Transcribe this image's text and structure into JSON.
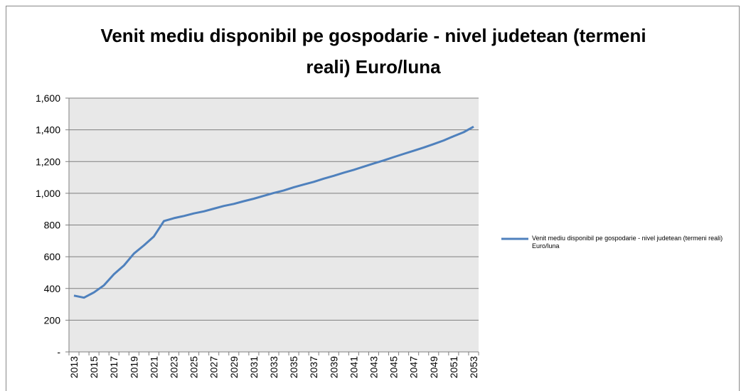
{
  "chart_data": {
    "type": "line",
    "title": "Venit mediu disponibil pe gospodarie - nivel judetean (termeni reali) Euro/luna",
    "categories": [
      "2013",
      null,
      "2015",
      null,
      "2017",
      null,
      "2019",
      null,
      "2021",
      null,
      "2023",
      null,
      "2025",
      null,
      "2027",
      null,
      "2029",
      null,
      "2031",
      null,
      "2033",
      null,
      "2035",
      null,
      "2037",
      null,
      "2039",
      null,
      "2041",
      null,
      "2043",
      null,
      "2045",
      null,
      "2047",
      null,
      "2049",
      null,
      "2051",
      null,
      "2053"
    ],
    "series": [
      {
        "name": "Venit mediu disponibil pe gospodarie - nivel judetean (termeni reali) Euro/luna",
        "color": "#4f81bd",
        "values": [
          355,
          342,
          375,
          420,
          490,
          545,
          620,
          672,
          728,
          825,
          843,
          857,
          873,
          886,
          903,
          920,
          933,
          950,
          966,
          984,
          1002,
          1018,
          1038,
          1055,
          1072,
          1092,
          1110,
          1130,
          1148,
          1168,
          1188,
          1207,
          1228,
          1248,
          1268,
          1288,
          1310,
          1333,
          1360,
          1385,
          1420
        ]
      }
    ],
    "ylim": [
      0,
      1600
    ],
    "yticks": [
      {
        "value": 0,
        "label": "-"
      },
      200,
      400,
      600,
      800,
      {
        "value": 1000,
        "label": "1,000"
      },
      {
        "value": 1200,
        "label": "1,200"
      },
      {
        "value": 1400,
        "label": "1,400"
      },
      {
        "value": 1600,
        "label": "1,600"
      }
    ],
    "grid": true,
    "legend": "right"
  }
}
